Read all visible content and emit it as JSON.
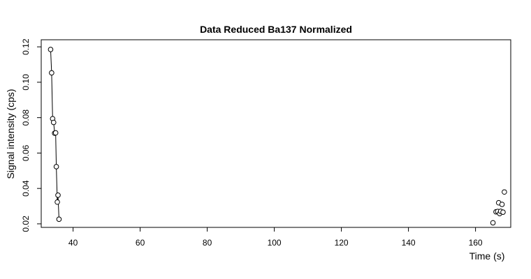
{
  "chart_data": {
    "type": "line",
    "title": "Data Reduced Ba137 Normalized",
    "xlabel": "Time (s)",
    "ylabel": "Signal intensity (cps)",
    "xlim": [
      30.5,
      170.5
    ],
    "ylim": [
      0.018,
      0.124
    ],
    "xticks": [
      40,
      60,
      80,
      100,
      120,
      140,
      160
    ],
    "xtick_labels": [
      "40",
      "60",
      "80",
      "100",
      "120",
      "140",
      "160"
    ],
    "yticks": [
      0.02,
      0.04,
      0.06,
      0.08,
      0.1,
      0.12
    ],
    "ytick_labels": [
      "0.02",
      "0.04",
      "0.06",
      "0.08",
      "0.10",
      "0.12"
    ],
    "grid": false,
    "legend": false,
    "series": [
      {
        "x": [
          33.3,
          33.6,
          33.9,
          34.2,
          34.5,
          34.8,
          35.0,
          35.3,
          35.5,
          35.8
        ],
        "y": [
          0.1185,
          0.1053,
          0.0794,
          0.0773,
          0.0712,
          0.0714,
          0.0523,
          0.0323,
          0.0362,
          0.0226
        ],
        "connected": true
      },
      {
        "x": [
          165.2,
          166.1,
          166.6,
          166.9,
          167.2,
          167.5,
          167.9,
          168.2,
          168.6
        ],
        "y": [
          0.0206,
          0.0268,
          0.027,
          0.0319,
          0.0258,
          0.0271,
          0.031,
          0.0266,
          0.038
        ],
        "connected": false
      }
    ]
  }
}
